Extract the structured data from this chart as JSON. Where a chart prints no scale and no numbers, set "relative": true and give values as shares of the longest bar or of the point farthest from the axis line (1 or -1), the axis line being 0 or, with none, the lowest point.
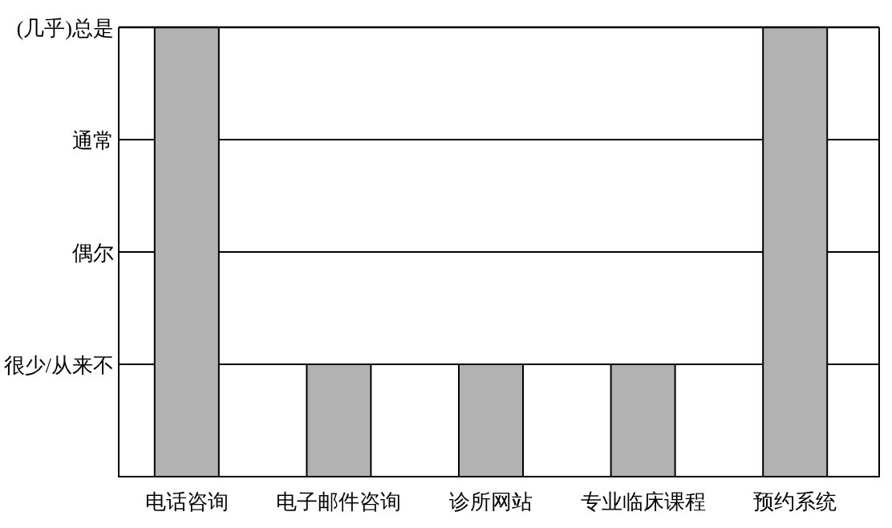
{
  "chart_data": {
    "type": "bar",
    "categories": [
      "电话咨询",
      "电子邮件咨询",
      "诊所网站",
      "专业临床课程",
      "预约系统"
    ],
    "values": [
      1,
      0.25,
      0.25,
      0.25,
      1
    ],
    "color": "#b2b2b2",
    "relative": true,
    "ref_lines": [
      {
        "axis": "y",
        "value": 0.25,
        "label": "很少/从来不"
      },
      {
        "axis": "y",
        "value": 0.5,
        "label": "偶尔"
      },
      {
        "axis": "y",
        "value": 0.75,
        "label": "通常"
      },
      {
        "axis": "y",
        "value": 1,
        "label": "(几乎)总是"
      }
    ]
  }
}
